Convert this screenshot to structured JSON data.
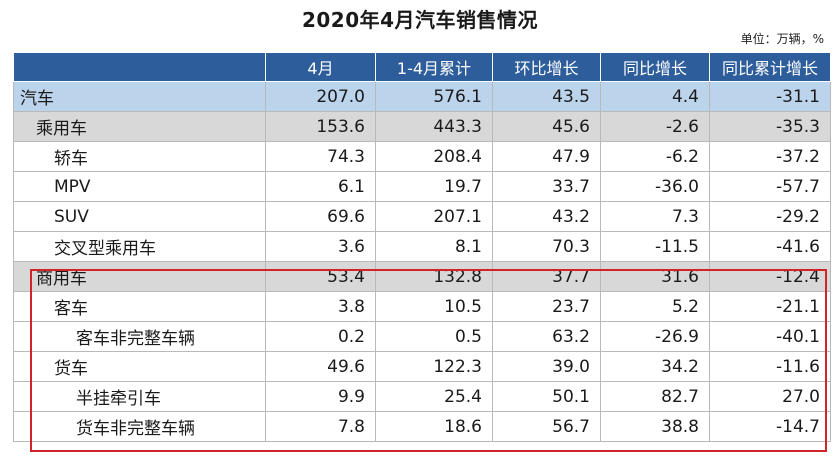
{
  "title": "2020年4月汽车销售情况",
  "unit": "单位：万辆，%",
  "table": {
    "headers": [
      "",
      "4月",
      "1-4月累计",
      "环比增长",
      "同比增长",
      "同比累计增长"
    ],
    "rows": [
      {
        "name": "汽车",
        "level": 0,
        "values": [
          "207.0",
          "576.1",
          "43.5",
          "4.4",
          "-31.1"
        ]
      },
      {
        "name": "乘用车",
        "level": 1,
        "values": [
          "153.6",
          "443.3",
          "45.6",
          "-2.6",
          "-35.3"
        ]
      },
      {
        "name": "轿车",
        "level": 2,
        "values": [
          "74.3",
          "208.4",
          "47.9",
          "-6.2",
          "-37.2"
        ]
      },
      {
        "name": "MPV",
        "level": 2,
        "values": [
          "6.1",
          "19.7",
          "33.7",
          "-36.0",
          "-57.7"
        ]
      },
      {
        "name": "SUV",
        "level": 2,
        "values": [
          "69.6",
          "207.1",
          "43.2",
          "7.3",
          "-29.2"
        ]
      },
      {
        "name": "交叉型乘用车",
        "level": 2,
        "values": [
          "3.6",
          "8.1",
          "70.3",
          "-11.5",
          "-41.6"
        ]
      },
      {
        "name": "商用车",
        "level": 1,
        "values": [
          "53.4",
          "132.8",
          "37.7",
          "31.6",
          "-12.4"
        ]
      },
      {
        "name": "客车",
        "level": 2,
        "values": [
          "3.8",
          "10.5",
          "23.7",
          "5.2",
          "-21.1"
        ]
      },
      {
        "name": "客车非完整车辆",
        "level": 3,
        "values": [
          "0.2",
          "0.5",
          "63.2",
          "-26.9",
          "-40.1"
        ]
      },
      {
        "name": "货车",
        "level": 2,
        "values": [
          "49.6",
          "122.3",
          "39.0",
          "34.2",
          "-11.6"
        ]
      },
      {
        "name": "半挂牵引车",
        "level": 3,
        "values": [
          "9.9",
          "25.4",
          "50.1",
          "82.7",
          "27.0"
        ]
      },
      {
        "name": "货车非完整车辆",
        "level": 3,
        "values": [
          "7.8",
          "18.6",
          "56.7",
          "38.8",
          "-14.7"
        ]
      }
    ]
  },
  "colors": {
    "header_bg": "#2e5d9c",
    "total_row_bg": "#bcd3ec",
    "category_row_bg": "#d8d8d8",
    "highlight_border": "#d2232a"
  }
}
